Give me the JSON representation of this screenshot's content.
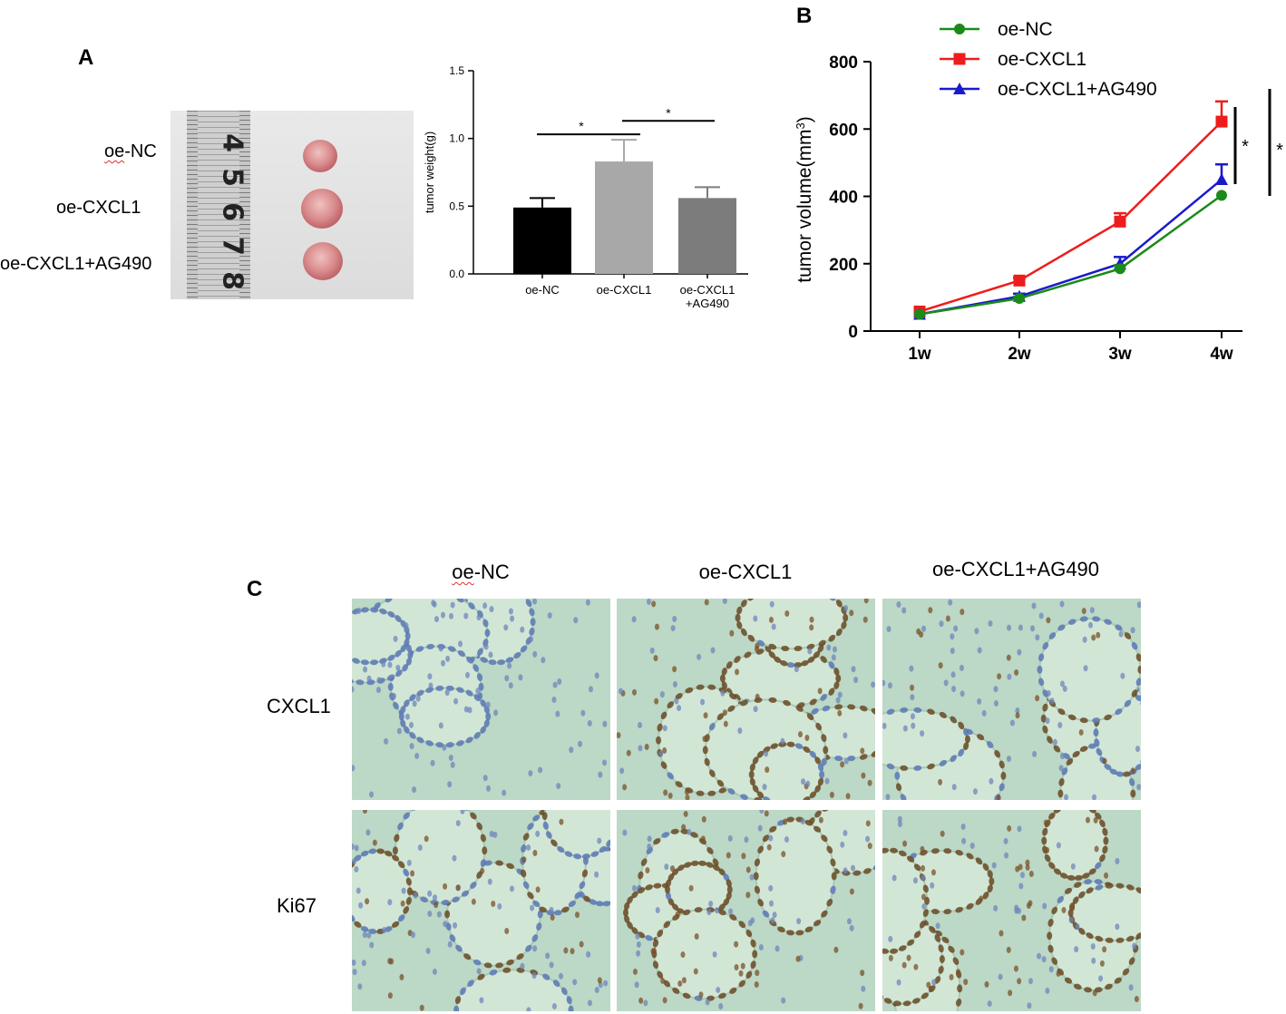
{
  "panels": {
    "a": "A",
    "b": "B",
    "c": "C"
  },
  "panel_a": {
    "photo_labels": [
      "oe-NC",
      "oe-CXCL1",
      "oe-CXCL1+AG490"
    ],
    "ruler_numbers": [
      "4",
      "5",
      "6",
      "7",
      "8"
    ]
  },
  "panel_c": {
    "columns": [
      "oe-NC",
      "oe-CXCL1",
      "oe-CXCL1+AG490"
    ],
    "rows": [
      "CXCL1",
      "Ki67"
    ],
    "stain_colors": {
      "hematoxylin": "#5a78b4",
      "dab": "#6a4a24",
      "background": "#bcd8c6"
    }
  },
  "chart_data": [
    {
      "type": "bar",
      "categories": [
        "oe-NC",
        "oe-CXCL1",
        "oe-CXCL1\n+AG490"
      ],
      "values": [
        0.49,
        0.83,
        0.56
      ],
      "errors": [
        0.07,
        0.16,
        0.08
      ],
      "colors": [
        "#000000",
        "#a8a8a8",
        "#7c7c7c"
      ],
      "ylabel": "tumor weight(g)",
      "ylim": [
        0,
        1.5
      ],
      "yticks": [
        "0.0",
        "0.5",
        "1.0",
        "1.5"
      ],
      "significance": [
        {
          "between": [
            "oe-NC",
            "oe-CXCL1"
          ],
          "label": "*"
        },
        {
          "between": [
            "oe-CXCL1",
            "oe-CXCL1\n+AG490"
          ],
          "label": "*"
        }
      ]
    },
    {
      "type": "line",
      "x": [
        "1w",
        "2w",
        "3w",
        "4w"
      ],
      "series": [
        {
          "name": "oe-NC",
          "color": "#1a8a1a",
          "marker": "circle",
          "values": [
            50,
            97,
            185,
            403
          ],
          "errors": [
            0,
            5,
            10,
            0
          ]
        },
        {
          "name": "oe-CXCL1",
          "color": "#ee1c1c",
          "marker": "square",
          "values": [
            58,
            150,
            325,
            622
          ],
          "errors": [
            0,
            8,
            25,
            60
          ]
        },
        {
          "name": "oe-CXCL1+AG490",
          "color": "#1a1acc",
          "marker": "triangle",
          "values": [
            50,
            103,
            200,
            450
          ],
          "errors": [
            0,
            8,
            20,
            45
          ]
        }
      ],
      "ylabel": "tumor volume(mm",
      "ylabel_sup": "3",
      "ylabel_close": ")",
      "ylim": [
        0,
        800
      ],
      "yticks": [
        "0",
        "200",
        "400",
        "600",
        "800"
      ],
      "significance": [
        "*",
        "*"
      ]
    }
  ]
}
